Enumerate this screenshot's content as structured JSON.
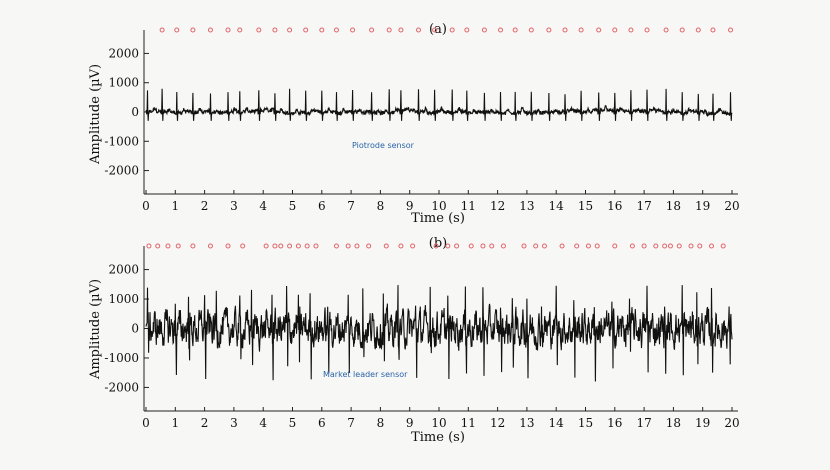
{
  "chart_data": [
    {
      "type": "line",
      "title": "(a)",
      "xlabel": "Time (s)",
      "ylabel": "Amplitude (µV)",
      "xlim": [
        0,
        20
      ],
      "ylim": [
        -2800,
        2800
      ],
      "xticks": [
        0,
        1,
        2,
        3,
        4,
        5,
        6,
        7,
        8,
        9,
        10,
        11,
        12,
        13,
        14,
        15,
        16,
        17,
        18,
        19,
        20
      ],
      "yticks": [
        2000,
        1000,
        0,
        -1000,
        -2000
      ],
      "annotation": "Piotrode sensor",
      "grid": false,
      "series": [
        {
          "style": "ecg",
          "baseline_uV": 0,
          "peak_range_uV": [
            600,
            800
          ],
          "trough_uV": -300,
          "noise_uV": 120,
          "r_peaks_s": [
            0.05,
            0.55,
            1.05,
            1.6,
            2.2,
            2.8,
            3.2,
            3.85,
            4.4,
            4.9,
            5.45,
            6.0,
            6.5,
            7.05,
            7.7,
            8.3,
            8.7,
            9.3,
            9.85,
            10.45,
            10.95,
            11.55,
            12.1,
            12.6,
            13.15,
            13.75,
            14.3,
            14.85,
            15.45,
            16.0,
            16.55,
            17.1,
            17.75,
            18.3,
            18.85,
            19.35,
            19.95
          ]
        },
        {
          "style": "markers",
          "marker": "circle",
          "color": "#e0656a",
          "y_uV": 2800,
          "x_s": [
            0.55,
            1.05,
            1.6,
            2.2,
            2.8,
            3.2,
            3.85,
            4.4,
            4.9,
            5.45,
            6.0,
            6.5,
            7.05,
            7.7,
            8.3,
            8.7,
            9.3,
            9.85,
            10.45,
            10.95,
            11.55,
            12.1,
            12.6,
            13.15,
            13.75,
            14.3,
            14.85,
            15.45,
            16.0,
            16.55,
            17.1,
            17.75,
            18.3,
            18.85,
            19.35,
            19.95
          ]
        }
      ]
    },
    {
      "type": "line",
      "title": "(b)",
      "xlabel": "Time (s)",
      "ylabel": "Amplitude (µV)",
      "xlim": [
        0,
        20
      ],
      "ylim": [
        -2800,
        2800
      ],
      "xticks": [
        0,
        1,
        2,
        3,
        4,
        5,
        6,
        7,
        8,
        9,
        10,
        11,
        12,
        13,
        14,
        15,
        16,
        17,
        18,
        19,
        20
      ],
      "yticks": [
        2000,
        1000,
        0,
        -1000,
        -2000
      ],
      "annotation": "Market leader sensor",
      "grid": false,
      "series": [
        {
          "style": "noisy",
          "baseline_uV": 0,
          "amplitude_range_uV": [
            -1800,
            1500
          ],
          "noise_uV": 600,
          "spike_times_s": [
            0.05,
            1.0,
            1.45,
            2.0,
            2.4,
            3.2,
            3.6,
            4.3,
            4.8,
            5.2,
            5.6,
            6.2,
            6.9,
            7.4,
            8.1,
            8.6,
            9.2,
            9.7,
            10.3,
            10.9,
            11.5,
            12.1,
            12.5,
            13.0,
            13.5,
            14.0,
            14.6,
            15.3,
            15.9,
            16.5,
            17.1,
            17.7,
            18.3,
            18.8,
            19.3,
            19.9
          ]
        },
        {
          "style": "markers",
          "marker": "circle",
          "color": "#e0656a",
          "y_uV": 2800,
          "x_s": [
            0.1,
            0.4,
            0.75,
            1.1,
            1.6,
            2.2,
            2.8,
            3.3,
            4.1,
            4.4,
            4.6,
            4.9,
            5.2,
            5.5,
            5.8,
            6.5,
            6.9,
            7.2,
            7.6,
            8.2,
            8.7,
            9.1,
            9.9,
            10.3,
            10.6,
            11.1,
            11.5,
            11.8,
            12.2,
            12.9,
            13.3,
            13.6,
            14.2,
            14.7,
            15.1,
            15.4,
            16.0,
            16.6,
            17.0,
            17.4,
            17.7,
            17.9,
            18.2,
            18.6,
            18.9,
            19.3,
            19.7
          ]
        }
      ]
    }
  ]
}
